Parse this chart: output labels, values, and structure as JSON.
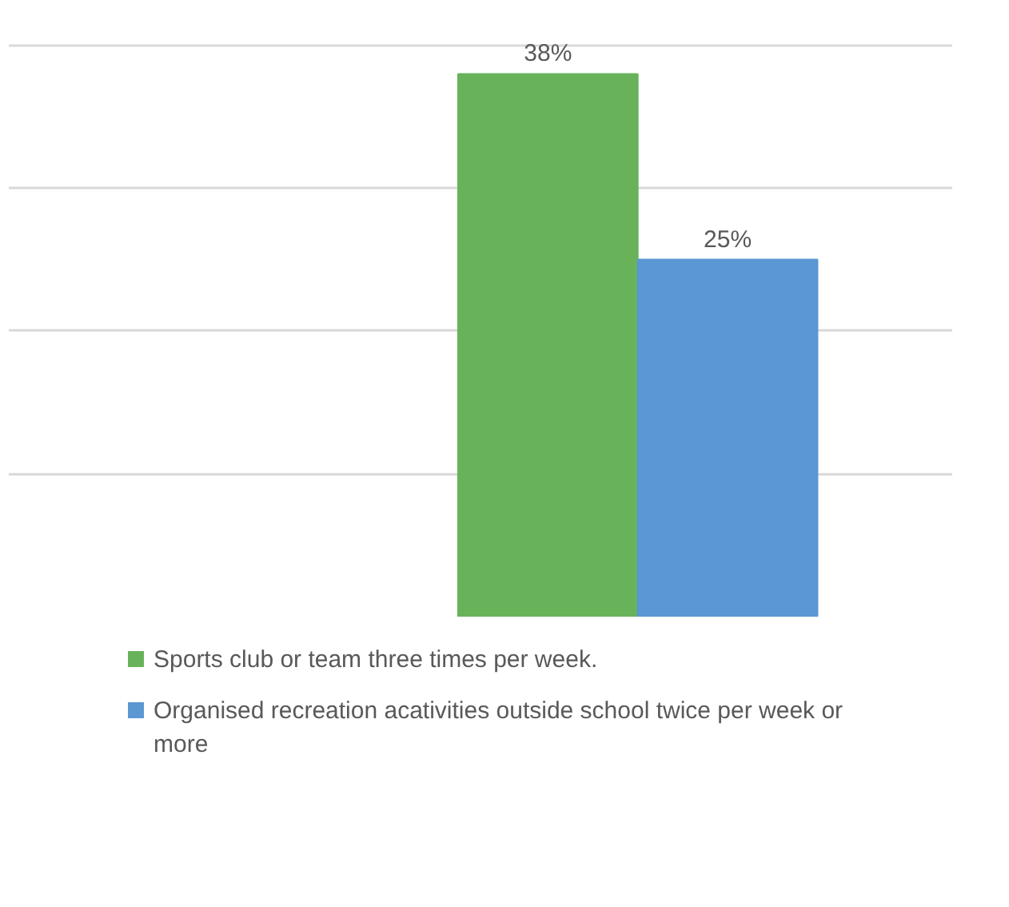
{
  "chart_data": {
    "type": "bar",
    "categories": [
      null
    ],
    "series": [
      {
        "name": "Sports club or team three times per week.",
        "color": "#68b35a",
        "values": [
          38
        ],
        "value_labels": [
          "38%"
        ]
      },
      {
        "name": "Organised recreation acativities outside school twice per week or more",
        "color": "#5a97d3",
        "values": [
          25
        ],
        "value_labels": [
          "25%"
        ]
      }
    ],
    "grid": "y",
    "legend": "bottom",
    "tick_labels": false
  }
}
